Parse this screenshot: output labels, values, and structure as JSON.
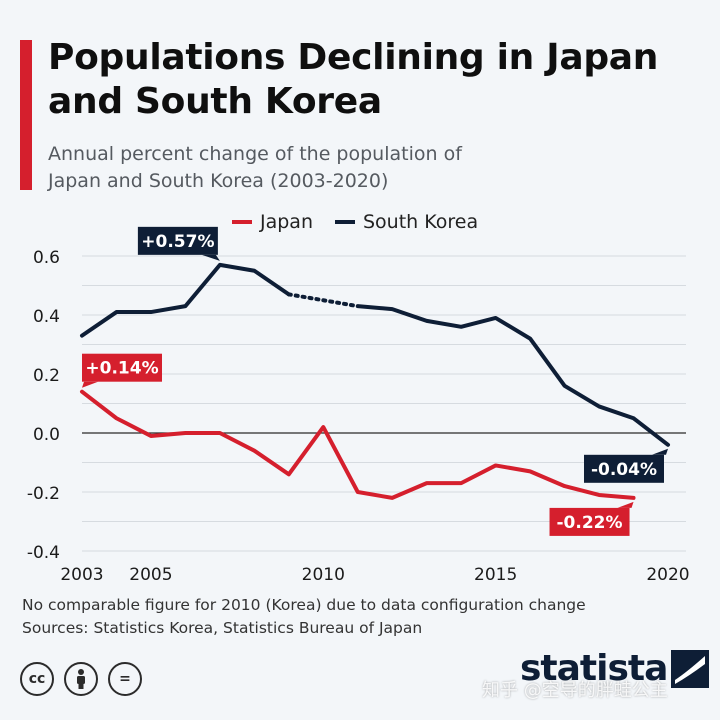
{
  "title": "Populations Declining in Japan and South Korea",
  "subtitle": "Annual percent change of the population of Japan and South Korea (2003-2020)",
  "colors": {
    "japan": "#d51f2d",
    "korea": "#0e1e36",
    "accent": "#d51f2d"
  },
  "chart_data": {
    "type": "line",
    "legend_position": "top",
    "grid": true,
    "ylim": [
      -0.4,
      0.6
    ],
    "xlim": [
      2003,
      2020
    ],
    "y_ticks": [
      0.6,
      0.4,
      0.2,
      0.0,
      -0.2,
      -0.4
    ],
    "y_tick_labels": [
      "0.6",
      "0.4",
      "0.2",
      "0.0",
      "-0.2",
      "-0.4"
    ],
    "x_ticks": [
      2003,
      2005,
      2010,
      2015,
      2020
    ],
    "x_tick_labels": [
      "2003",
      "2005",
      "2010",
      "2015",
      "2020"
    ],
    "series": [
      {
        "name": "Japan",
        "color": "#d51f2d",
        "x": [
          2003,
          2004,
          2005,
          2006,
          2007,
          2008,
          2009,
          2010,
          2011,
          2012,
          2013,
          2014,
          2015,
          2016,
          2017,
          2018,
          2019
        ],
        "values": [
          0.14,
          0.05,
          -0.01,
          0.0,
          0.0,
          -0.06,
          -0.14,
          0.02,
          -0.2,
          -0.22,
          -0.17,
          -0.17,
          -0.11,
          -0.13,
          -0.18,
          -0.21,
          -0.22
        ]
      },
      {
        "name": "South Korea",
        "color": "#0e1e36",
        "x": [
          2003,
          2004,
          2005,
          2006,
          2007,
          2008,
          2009,
          2011,
          2012,
          2013,
          2014,
          2015,
          2016,
          2017,
          2018,
          2019,
          2020
        ],
        "values": [
          0.33,
          0.41,
          0.41,
          0.43,
          0.57,
          0.55,
          0.47,
          0.43,
          0.42,
          0.38,
          0.36,
          0.39,
          0.32,
          0.16,
          0.09,
          0.05,
          -0.04
        ],
        "gap_between": [
          2009,
          2011
        ]
      }
    ],
    "annotations": [
      {
        "series": "South Korea",
        "x": 2007,
        "y": 0.57,
        "label": "+0.57%",
        "placement": "above-left"
      },
      {
        "series": "Japan",
        "x": 2003,
        "y": 0.14,
        "label": "+0.14%",
        "placement": "above-right"
      },
      {
        "series": "South Korea",
        "x": 2020,
        "y": -0.04,
        "label": "-0.04%",
        "placement": "below-left"
      },
      {
        "series": "Japan",
        "x": 2019,
        "y": -0.22,
        "label": "-0.22%",
        "placement": "below-left"
      }
    ]
  },
  "footnote": {
    "note": "No comparable figure for 2010 (Korea) due to data configuration change",
    "sources": "Sources: Statistics Korea, Statistics Bureau of Japan"
  },
  "license_icons": [
    "creative-commons-icon",
    "attribution-icon",
    "no-derivatives-icon"
  ],
  "cc_label": "cc",
  "nd_label": "=",
  "brand": "statista",
  "watermark": "知乎 @空导的胖蛙公主"
}
